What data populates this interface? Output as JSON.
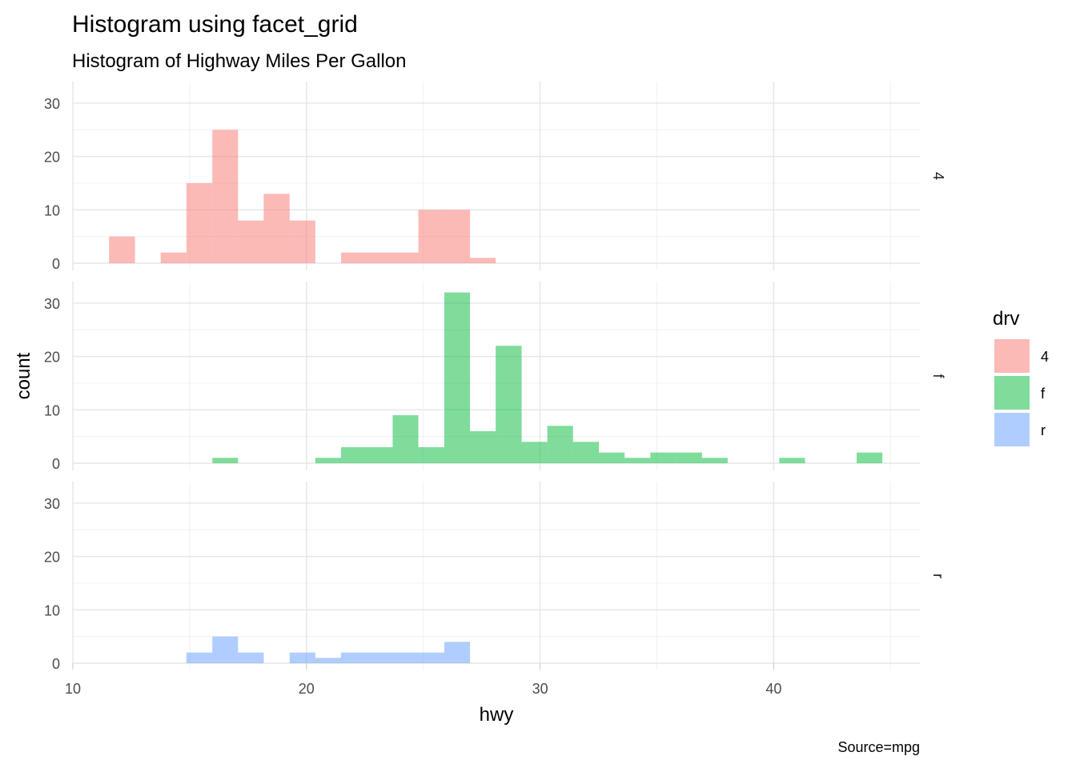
{
  "chart_data": {
    "type": "histogram",
    "title": "Histogram using facet_grid",
    "subtitle": "Histogram of Highway Miles Per Gallon",
    "xlabel": "hwy",
    "ylabel": "count",
    "caption": "Source=mpg",
    "xlim": [
      10,
      46
    ],
    "ylim": [
      0,
      33
    ],
    "x_ticks": [
      10,
      20,
      30,
      40
    ],
    "y_ticks": [
      0,
      10,
      20,
      30
    ],
    "grid": true,
    "facet_by": "drv",
    "bins": [
      [
        11.55,
        12.66
      ],
      [
        12.66,
        13.76
      ],
      [
        13.76,
        14.86
      ],
      [
        14.86,
        15.97
      ],
      [
        15.97,
        17.07
      ],
      [
        17.07,
        18.17
      ],
      [
        18.17,
        19.28
      ],
      [
        19.28,
        20.38
      ],
      [
        20.38,
        21.48
      ],
      [
        21.48,
        22.59
      ],
      [
        22.59,
        23.69
      ],
      [
        23.69,
        24.79
      ],
      [
        24.79,
        25.9
      ],
      [
        25.9,
        27.0
      ],
      [
        27.0,
        28.1
      ],
      [
        28.1,
        29.21
      ],
      [
        29.21,
        30.31
      ],
      [
        30.31,
        31.41
      ],
      [
        31.41,
        32.52
      ],
      [
        32.52,
        33.62
      ],
      [
        33.62,
        34.72
      ],
      [
        34.72,
        35.83
      ],
      [
        35.83,
        36.93
      ],
      [
        36.93,
        38.03
      ],
      [
        38.03,
        39.14
      ],
      [
        39.14,
        40.24
      ],
      [
        40.24,
        41.34
      ],
      [
        41.34,
        42.45
      ],
      [
        42.45,
        43.55
      ],
      [
        43.55,
        44.65
      ]
    ],
    "series": [
      {
        "name": "4",
        "color": "#F8766D",
        "values": [
          5,
          0,
          2,
          15,
          25,
          8,
          13,
          8,
          0,
          2,
          2,
          2,
          10,
          10,
          1,
          0,
          0,
          0,
          0,
          0,
          0,
          0,
          0,
          0,
          0,
          0,
          0,
          0,
          0,
          0
        ]
      },
      {
        "name": "f",
        "color": "#00BA38",
        "values": [
          0,
          0,
          0,
          0,
          1,
          0,
          0,
          0,
          1,
          3,
          3,
          9,
          3,
          32,
          6,
          22,
          4,
          7,
          4,
          2,
          1,
          2,
          2,
          1,
          0,
          0,
          1,
          0,
          0,
          2
        ]
      },
      {
        "name": "r",
        "color": "#619CFF",
        "values": [
          0,
          0,
          0,
          2,
          5,
          2,
          0,
          2,
          1,
          2,
          2,
          2,
          2,
          4,
          0,
          0,
          0,
          0,
          0,
          0,
          0,
          0,
          0,
          0,
          0,
          0,
          0,
          0,
          0,
          0
        ]
      }
    ],
    "legend": {
      "title": "drv",
      "position": "right",
      "labels": [
        "4",
        "f",
        "r"
      ]
    }
  }
}
